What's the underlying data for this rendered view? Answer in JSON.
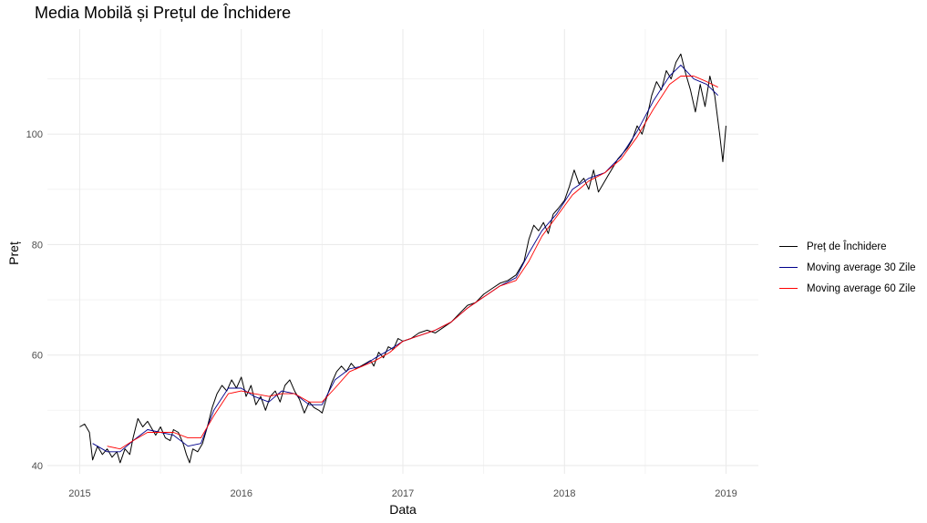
{
  "chart_data": {
    "type": "line",
    "title": "Media Mobilă și Prețul de Închidere",
    "xlabel": "Data",
    "ylabel": "Preț",
    "x_ticks": [
      "2015",
      "2016",
      "2017",
      "2018",
      "2019"
    ],
    "y_ticks": [
      40,
      60,
      80,
      100
    ],
    "xlim": [
      2014.8,
      2019.2
    ],
    "ylim": [
      38.5,
      119
    ],
    "grid": true,
    "legend_position": "right",
    "series": [
      {
        "name": "Preț de Închidere",
        "color": "#000000",
        "points": [
          [
            2015.0,
            47.0
          ],
          [
            2015.03,
            47.5
          ],
          [
            2015.06,
            46.0
          ],
          [
            2015.08,
            41.0
          ],
          [
            2015.11,
            43.5
          ],
          [
            2015.14,
            42.0
          ],
          [
            2015.17,
            43.0
          ],
          [
            2015.2,
            41.5
          ],
          [
            2015.23,
            42.5
          ],
          [
            2015.25,
            40.5
          ],
          [
            2015.28,
            43.0
          ],
          [
            2015.31,
            42.0
          ],
          [
            2015.33,
            45.0
          ],
          [
            2015.36,
            48.5
          ],
          [
            2015.39,
            47.0
          ],
          [
            2015.42,
            48.0
          ],
          [
            2015.45,
            46.5
          ],
          [
            2015.47,
            45.5
          ],
          [
            2015.5,
            47.0
          ],
          [
            2015.53,
            45.0
          ],
          [
            2015.56,
            44.5
          ],
          [
            2015.58,
            46.5
          ],
          [
            2015.61,
            46.0
          ],
          [
            2015.64,
            44.0
          ],
          [
            2015.66,
            42.0
          ],
          [
            2015.68,
            40.5
          ],
          [
            2015.7,
            43.0
          ],
          [
            2015.73,
            42.5
          ],
          [
            2015.76,
            44.0
          ],
          [
            2015.79,
            47.0
          ],
          [
            2015.82,
            50.5
          ],
          [
            2015.85,
            53.0
          ],
          [
            2015.88,
            54.5
          ],
          [
            2015.91,
            53.5
          ],
          [
            2015.94,
            55.5
          ],
          [
            2015.97,
            54.0
          ],
          [
            2016.0,
            56.0
          ],
          [
            2016.03,
            52.5
          ],
          [
            2016.06,
            54.5
          ],
          [
            2016.09,
            51.0
          ],
          [
            2016.12,
            52.5
          ],
          [
            2016.15,
            50.0
          ],
          [
            2016.18,
            52.5
          ],
          [
            2016.21,
            53.5
          ],
          [
            2016.24,
            51.5
          ],
          [
            2016.27,
            54.5
          ],
          [
            2016.3,
            55.5
          ],
          [
            2016.33,
            53.5
          ],
          [
            2016.36,
            52.0
          ],
          [
            2016.39,
            49.5
          ],
          [
            2016.42,
            51.5
          ],
          [
            2016.45,
            50.5
          ],
          [
            2016.48,
            50.0
          ],
          [
            2016.5,
            49.5
          ],
          [
            2016.53,
            52.5
          ],
          [
            2016.56,
            55.0
          ],
          [
            2016.59,
            57.0
          ],
          [
            2016.62,
            58.0
          ],
          [
            2016.65,
            57.0
          ],
          [
            2016.68,
            58.5
          ],
          [
            2016.71,
            57.5
          ],
          [
            2016.74,
            58.0
          ],
          [
            2016.77,
            58.5
          ],
          [
            2016.8,
            59.0
          ],
          [
            2016.82,
            58.0
          ],
          [
            2016.85,
            60.5
          ],
          [
            2016.88,
            59.5
          ],
          [
            2016.91,
            61.5
          ],
          [
            2016.94,
            61.0
          ],
          [
            2016.97,
            63.0
          ],
          [
            2017.0,
            62.5
          ],
          [
            2017.05,
            63.0
          ],
          [
            2017.1,
            64.0
          ],
          [
            2017.15,
            64.5
          ],
          [
            2017.2,
            64.0
          ],
          [
            2017.25,
            65.0
          ],
          [
            2017.3,
            66.0
          ],
          [
            2017.35,
            67.5
          ],
          [
            2017.4,
            69.0
          ],
          [
            2017.45,
            69.5
          ],
          [
            2017.5,
            71.0
          ],
          [
            2017.55,
            72.0
          ],
          [
            2017.6,
            73.0
          ],
          [
            2017.65,
            73.5
          ],
          [
            2017.7,
            74.5
          ],
          [
            2017.75,
            77.0
          ],
          [
            2017.78,
            81.0
          ],
          [
            2017.81,
            83.5
          ],
          [
            2017.84,
            82.5
          ],
          [
            2017.87,
            84.0
          ],
          [
            2017.9,
            82.0
          ],
          [
            2017.93,
            85.5
          ],
          [
            2017.96,
            86.5
          ],
          [
            2018.0,
            88.0
          ],
          [
            2018.03,
            90.5
          ],
          [
            2018.06,
            93.5
          ],
          [
            2018.09,
            91.0
          ],
          [
            2018.12,
            92.0
          ],
          [
            2018.15,
            90.0
          ],
          [
            2018.18,
            93.5
          ],
          [
            2018.21,
            89.5
          ],
          [
            2018.24,
            91.0
          ],
          [
            2018.27,
            92.5
          ],
          [
            2018.3,
            94.0
          ],
          [
            2018.33,
            95.5
          ],
          [
            2018.36,
            96.5
          ],
          [
            2018.39,
            97.5
          ],
          [
            2018.42,
            99.0
          ],
          [
            2018.45,
            101.5
          ],
          [
            2018.48,
            100.0
          ],
          [
            2018.51,
            103.0
          ],
          [
            2018.54,
            107.0
          ],
          [
            2018.57,
            109.5
          ],
          [
            2018.6,
            108.0
          ],
          [
            2018.63,
            111.5
          ],
          [
            2018.66,
            110.0
          ],
          [
            2018.69,
            113.0
          ],
          [
            2018.72,
            114.5
          ],
          [
            2018.75,
            111.0
          ],
          [
            2018.78,
            108.0
          ],
          [
            2018.81,
            104.0
          ],
          [
            2018.84,
            109.0
          ],
          [
            2018.87,
            105.0
          ],
          [
            2018.9,
            110.5
          ],
          [
            2018.93,
            107.0
          ],
          [
            2018.96,
            100.0
          ],
          [
            2018.98,
            95.0
          ],
          [
            2019.0,
            101.5
          ]
        ]
      },
      {
        "name": "Moving average 30 Zile",
        "color": "#00008b",
        "points": [
          [
            2015.08,
            44.0
          ],
          [
            2015.17,
            42.5
          ],
          [
            2015.25,
            42.5
          ],
          [
            2015.33,
            44.5
          ],
          [
            2015.42,
            46.5
          ],
          [
            2015.5,
            46.0
          ],
          [
            2015.58,
            45.5
          ],
          [
            2015.67,
            43.5
          ],
          [
            2015.75,
            44.0
          ],
          [
            2015.83,
            50.0
          ],
          [
            2015.92,
            54.0
          ],
          [
            2016.0,
            54.0
          ],
          [
            2016.08,
            52.5
          ],
          [
            2016.17,
            51.5
          ],
          [
            2016.25,
            53.5
          ],
          [
            2016.33,
            53.0
          ],
          [
            2016.42,
            51.0
          ],
          [
            2016.5,
            51.0
          ],
          [
            2016.58,
            55.5
          ],
          [
            2016.67,
            57.5
          ],
          [
            2016.75,
            58.0
          ],
          [
            2016.83,
            59.5
          ],
          [
            2016.92,
            61.0
          ],
          [
            2017.0,
            62.5
          ],
          [
            2017.1,
            63.5
          ],
          [
            2017.2,
            64.5
          ],
          [
            2017.3,
            66.0
          ],
          [
            2017.4,
            68.5
          ],
          [
            2017.5,
            70.5
          ],
          [
            2017.6,
            72.5
          ],
          [
            2017.7,
            74.0
          ],
          [
            2017.78,
            78.5
          ],
          [
            2017.86,
            82.5
          ],
          [
            2017.95,
            85.5
          ],
          [
            2018.05,
            90.0
          ],
          [
            2018.15,
            92.0
          ],
          [
            2018.25,
            93.0
          ],
          [
            2018.35,
            96.0
          ],
          [
            2018.45,
            100.5
          ],
          [
            2018.55,
            106.0
          ],
          [
            2018.65,
            110.5
          ],
          [
            2018.72,
            112.5
          ],
          [
            2018.8,
            110.0
          ],
          [
            2018.88,
            109.0
          ],
          [
            2018.95,
            107.0
          ]
        ]
      },
      {
        "name": "Moving average 60 Zile",
        "color": "#ff0000",
        "points": [
          [
            2015.17,
            43.5
          ],
          [
            2015.25,
            43.0
          ],
          [
            2015.33,
            44.5
          ],
          [
            2015.42,
            46.0
          ],
          [
            2015.5,
            46.0
          ],
          [
            2015.58,
            46.0
          ],
          [
            2015.67,
            45.0
          ],
          [
            2015.75,
            45.0
          ],
          [
            2015.83,
            49.0
          ],
          [
            2015.92,
            53.0
          ],
          [
            2016.0,
            53.5
          ],
          [
            2016.08,
            53.0
          ],
          [
            2016.17,
            52.5
          ],
          [
            2016.25,
            53.0
          ],
          [
            2016.33,
            53.0
          ],
          [
            2016.42,
            51.5
          ],
          [
            2016.5,
            51.5
          ],
          [
            2016.58,
            54.0
          ],
          [
            2016.67,
            57.0
          ],
          [
            2016.75,
            58.0
          ],
          [
            2016.83,
            59.0
          ],
          [
            2016.92,
            60.5
          ],
          [
            2017.0,
            62.5
          ],
          [
            2017.1,
            63.5
          ],
          [
            2017.2,
            64.5
          ],
          [
            2017.3,
            66.0
          ],
          [
            2017.4,
            68.5
          ],
          [
            2017.5,
            70.5
          ],
          [
            2017.6,
            72.5
          ],
          [
            2017.7,
            73.5
          ],
          [
            2017.78,
            77.0
          ],
          [
            2017.86,
            81.5
          ],
          [
            2017.95,
            85.0
          ],
          [
            2018.05,
            89.0
          ],
          [
            2018.15,
            91.5
          ],
          [
            2018.25,
            93.0
          ],
          [
            2018.35,
            95.5
          ],
          [
            2018.45,
            99.5
          ],
          [
            2018.55,
            104.5
          ],
          [
            2018.65,
            109.0
          ],
          [
            2018.72,
            110.5
          ],
          [
            2018.8,
            110.5
          ],
          [
            2018.88,
            109.5
          ],
          [
            2018.95,
            108.5
          ]
        ]
      }
    ]
  }
}
